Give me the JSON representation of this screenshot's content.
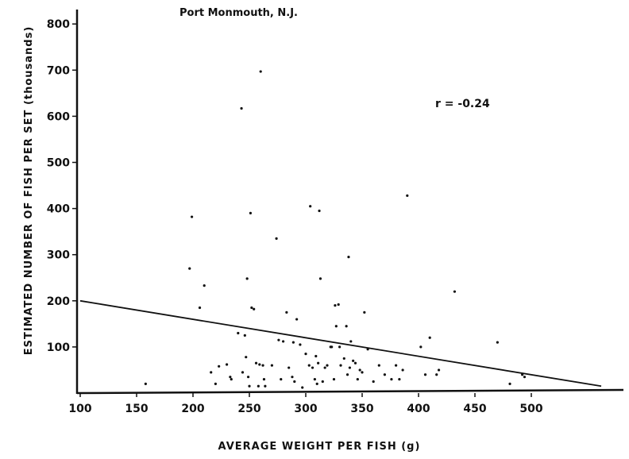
{
  "chart_data": {
    "type": "scatter",
    "title": "Port Monmouth, N.J.",
    "xlabel": "AVERAGE WEIGHT PER FISH (g)",
    "ylabel": "ESTIMATED NUMBER OF FISH PER SET (thousands)",
    "xlim": [
      100,
      570
    ],
    "ylim": [
      0,
      820
    ],
    "x_ticks": [
      100,
      150,
      200,
      250,
      300,
      350,
      400,
      450,
      500
    ],
    "x_tick_labels": [
      "100",
      "150",
      "200",
      "250",
      "300",
      "350",
      "400",
      "450",
      "500"
    ],
    "y_ticks": [
      100,
      200,
      300,
      400,
      500,
      600,
      700,
      800
    ],
    "y_tick_labels": [
      "100",
      "200",
      "300",
      "400",
      "500",
      "600",
      "700",
      "800"
    ],
    "grid": false,
    "annotation": "r = -0.24",
    "regression_line": {
      "x": [
        100,
        562
      ],
      "y": [
        200,
        15
      ]
    },
    "series": [
      {
        "points": [
          [
            158,
            20
          ],
          [
            197,
            270
          ],
          [
            199,
            382
          ],
          [
            206,
            185
          ],
          [
            210,
            233
          ],
          [
            216,
            45
          ],
          [
            220,
            20
          ],
          [
            223,
            58
          ],
          [
            230,
            62
          ],
          [
            233,
            35
          ],
          [
            234,
            30
          ],
          [
            240,
            130
          ],
          [
            243,
            617
          ],
          [
            244,
            45
          ],
          [
            246,
            125
          ],
          [
            247,
            78
          ],
          [
            248,
            248
          ],
          [
            249,
            35
          ],
          [
            250,
            15
          ],
          [
            251,
            390
          ],
          [
            252,
            185
          ],
          [
            254,
            182
          ],
          [
            256,
            65
          ],
          [
            258,
            15
          ],
          [
            259,
            62
          ],
          [
            260,
            697
          ],
          [
            262,
            60
          ],
          [
            263,
            30
          ],
          [
            264,
            15
          ],
          [
            270,
            60
          ],
          [
            274,
            335
          ],
          [
            276,
            115
          ],
          [
            278,
            30
          ],
          [
            280,
            112
          ],
          [
            283,
            175
          ],
          [
            285,
            55
          ],
          [
            288,
            35
          ],
          [
            289,
            110
          ],
          [
            290,
            25
          ],
          [
            292,
            160
          ],
          [
            295,
            105
          ],
          [
            297,
            12
          ],
          [
            300,
            85
          ],
          [
            303,
            60
          ],
          [
            304,
            405
          ],
          [
            306,
            55
          ],
          [
            308,
            30
          ],
          [
            309,
            80
          ],
          [
            310,
            20
          ],
          [
            311,
            65
          ],
          [
            312,
            395
          ],
          [
            313,
            248
          ],
          [
            315,
            25
          ],
          [
            317,
            55
          ],
          [
            319,
            60
          ],
          [
            322,
            100
          ],
          [
            323,
            100
          ],
          [
            325,
            30
          ],
          [
            326,
            190
          ],
          [
            327,
            145
          ],
          [
            329,
            192
          ],
          [
            330,
            100
          ],
          [
            331,
            60
          ],
          [
            334,
            75
          ],
          [
            336,
            145
          ],
          [
            337,
            40
          ],
          [
            338,
            295
          ],
          [
            339,
            55
          ],
          [
            340,
            112
          ],
          [
            342,
            70
          ],
          [
            344,
            65
          ],
          [
            346,
            30
          ],
          [
            348,
            50
          ],
          [
            350,
            45
          ],
          [
            352,
            175
          ],
          [
            355,
            95
          ],
          [
            360,
            25
          ],
          [
            365,
            60
          ],
          [
            370,
            40
          ],
          [
            376,
            30
          ],
          [
            380,
            60
          ],
          [
            383,
            30
          ],
          [
            386,
            50
          ],
          [
            390,
            428
          ],
          [
            402,
            100
          ],
          [
            406,
            40
          ],
          [
            410,
            120
          ],
          [
            416,
            40
          ],
          [
            418,
            50
          ],
          [
            432,
            220
          ],
          [
            470,
            110
          ],
          [
            481,
            20
          ],
          [
            492,
            40
          ],
          [
            494,
            35
          ]
        ]
      }
    ]
  }
}
